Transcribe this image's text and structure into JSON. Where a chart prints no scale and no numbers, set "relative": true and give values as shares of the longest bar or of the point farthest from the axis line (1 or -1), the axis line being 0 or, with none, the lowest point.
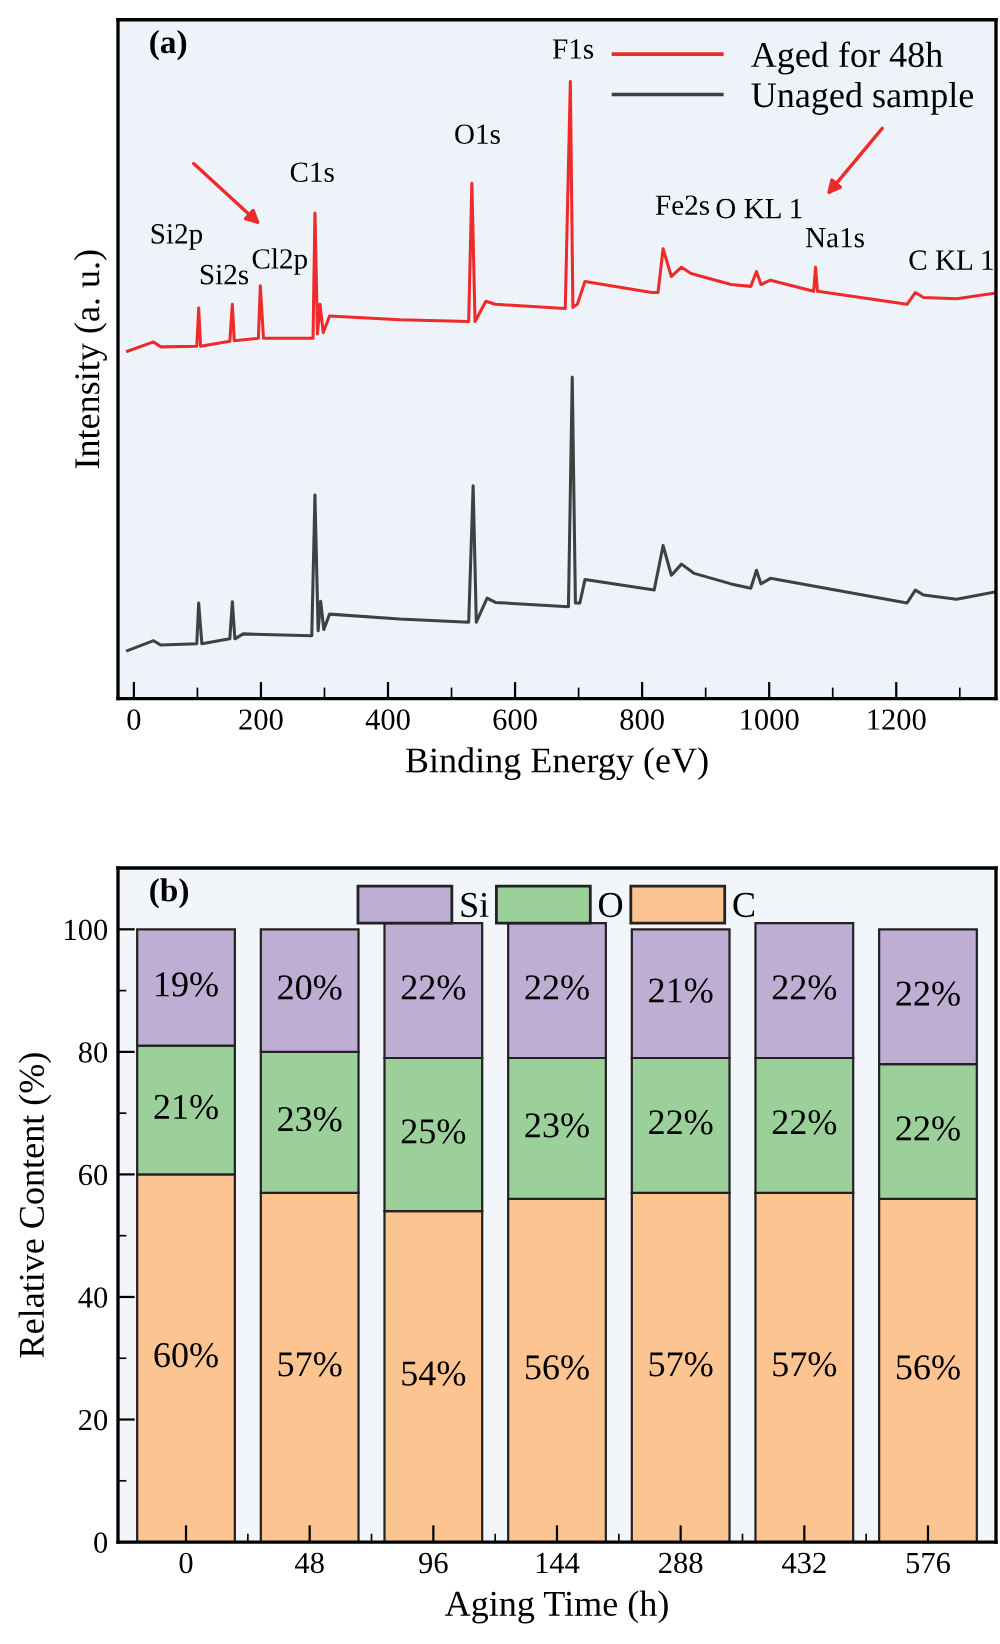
{
  "chart_data": [
    {
      "type": "line",
      "relative": true,
      "xlabel": "Binding Energy (eV)",
      "ylabel": "Intensity (a. u.)",
      "xlim": [
        -25,
        1357
      ],
      "xticks": [
        0,
        200,
        400,
        600,
        800,
        1000,
        1200
      ],
      "tick_labels": "x",
      "legend": "top right",
      "grid": false,
      "series": [
        {
          "name": "Aged for 48h",
          "color": "#ee2a2a",
          "x": [
            -10,
            31,
            42,
            99,
            102,
            105,
            151,
            155,
            158,
            196,
            199,
            204,
            282,
            285,
            289,
            293,
            298,
            308,
            418,
            527,
            532,
            537,
            554,
            569,
            679,
            687,
            691,
            698,
            710,
            815,
            825,
            833,
            846,
            862,
            877,
            940,
            971,
            980,
            987,
            1002,
            1070,
            1073,
            1076,
            1217,
            1230,
            1243,
            1295,
            1356
          ],
          "values": [
            0.563,
            0.578,
            0.57,
            0.571,
            0.633,
            0.571,
            0.579,
            0.639,
            0.58,
            0.584,
            0.669,
            0.584,
            0.584,
            0.787,
            0.591,
            0.639,
            0.593,
            0.62,
            0.614,
            0.611,
            0.835,
            0.611,
            0.644,
            0.639,
            0.632,
            1.0,
            0.634,
            0.639,
            0.676,
            0.658,
            0.658,
            0.729,
            0.684,
            0.699,
            0.689,
            0.671,
            0.668,
            0.692,
            0.671,
            0.678,
            0.66,
            0.699,
            0.66,
            0.639,
            0.658,
            0.65,
            0.648,
            0.657
          ]
        },
        {
          "name": "Unaged sample",
          "color": "#404040",
          "x": [
            -10,
            31,
            42,
            99,
            102,
            107,
            151,
            155,
            159,
            172,
            280,
            285,
            290,
            294,
            299,
            308,
            418,
            527,
            534,
            539,
            556,
            569,
            684,
            690,
            695,
            702,
            710,
            819,
            833,
            846,
            862,
            882,
            940,
            971,
            980,
            987,
            1002,
            1217,
            1230,
            1243,
            1295,
            1356
          ],
          "values": [
            0.078,
            0.094,
            0.087,
            0.089,
            0.155,
            0.089,
            0.097,
            0.157,
            0.097,
            0.105,
            0.102,
            0.33,
            0.11,
            0.158,
            0.112,
            0.137,
            0.129,
            0.124,
            0.345,
            0.124,
            0.163,
            0.156,
            0.149,
            0.521,
            0.155,
            0.155,
            0.193,
            0.176,
            0.248,
            0.2,
            0.218,
            0.203,
            0.186,
            0.179,
            0.208,
            0.186,
            0.195,
            0.155,
            0.176,
            0.168,
            0.161,
            0.173
          ]
        }
      ],
      "annotations": [
        "(a)",
        {
          "text": "Si2p",
          "x": 102,
          "y": 0.633
        },
        {
          "text": "Si2s",
          "x": 155,
          "y": 0.639
        },
        {
          "text": "Cl2p",
          "x": 199,
          "y": 0.669
        },
        {
          "text": "C1s",
          "x": 285,
          "y": 0.787
        },
        {
          "text": "O1s",
          "x": 532,
          "y": 0.835
        },
        {
          "text": "F1s",
          "x": 687,
          "y": 1.0
        },
        {
          "text": "Fe2s",
          "x": 833,
          "y": 0.729
        },
        {
          "text": "O KL 1",
          "x": 980,
          "y": 0.692
        },
        {
          "text": "Na1s",
          "x": 1073,
          "y": 0.699
        },
        {
          "text": "C KL 1",
          "x": 1230,
          "y": 0.658
        }
      ]
    },
    {
      "type": "bar",
      "stacked": true,
      "xlabel": "Aging Time (h)",
      "ylabel": "Relative Content (%)",
      "categories": [
        "0",
        "48",
        "96",
        "144",
        "288",
        "432",
        "576"
      ],
      "ylim": [
        0,
        110
      ],
      "yticks": [
        0,
        20,
        40,
        60,
        80,
        100
      ],
      "legend": "top",
      "grid": false,
      "series": [
        {
          "name": "C",
          "color": "#fcc490",
          "values": [
            60,
            57,
            54,
            56,
            57,
            57,
            56
          ],
          "value_labels": [
            "60%",
            "57%",
            "54%",
            "56%",
            "57%",
            "57%",
            "56%"
          ]
        },
        {
          "name": "O",
          "color": "#9bd09a",
          "values": [
            21,
            23,
            25,
            23,
            22,
            22,
            22
          ],
          "value_labels": [
            "21%",
            "23%",
            "25%",
            "23%",
            "22%",
            "22%",
            "22%"
          ]
        },
        {
          "name": "Si",
          "color": "#bfaed4",
          "values": [
            19,
            20,
            22,
            22,
            21,
            22,
            22
          ],
          "value_labels": [
            "19%",
            "20%",
            "22%",
            "22%",
            "21%",
            "22%",
            "22%"
          ]
        }
      ],
      "annotations": [
        "(b)"
      ]
    }
  ]
}
